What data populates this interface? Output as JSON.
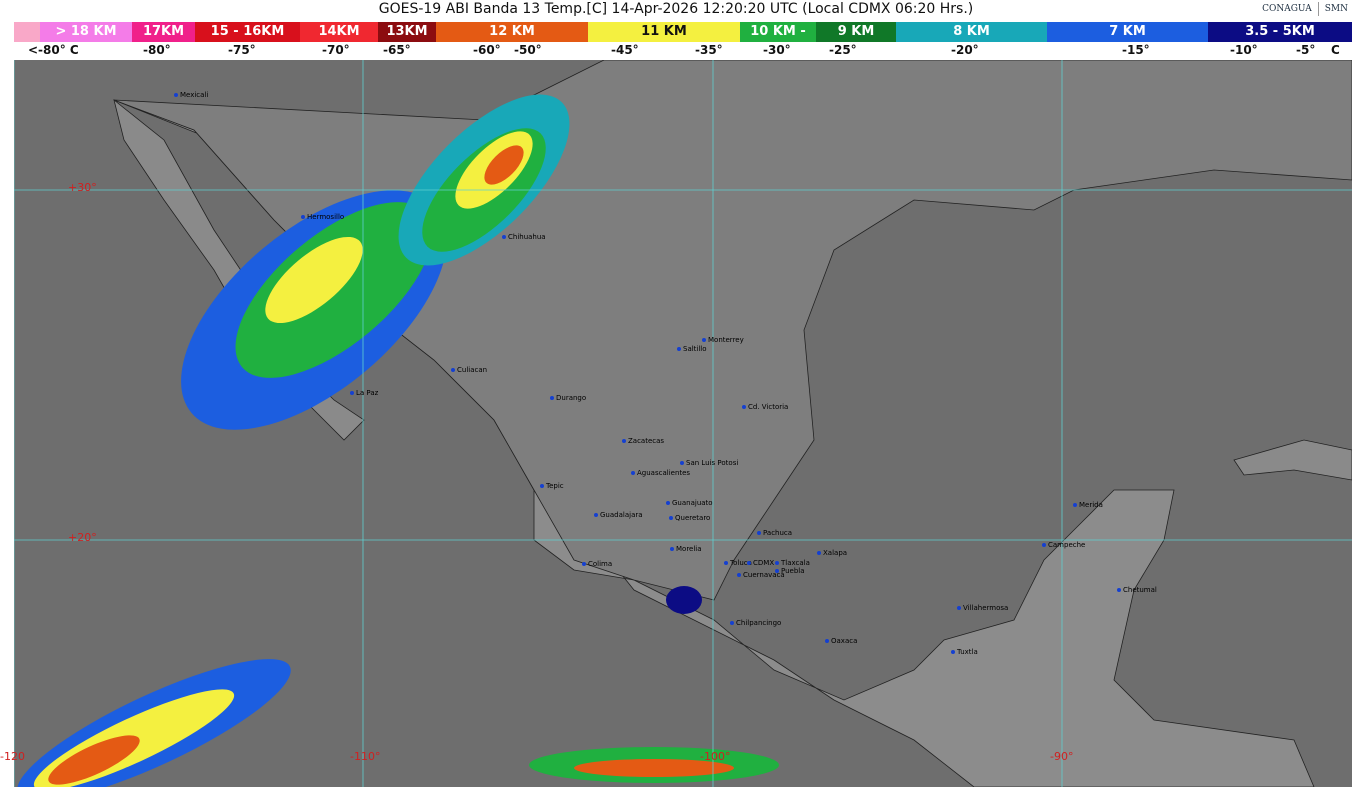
{
  "title": "GOES-19 ABI Banda 13 Temp.[C] 14-Apr-2026 12:20:20 UTC (Local CDMX  06:20 Hrs.)",
  "logos": {
    "conagua": "CONAGUA",
    "smn": "SMN"
  },
  "legend": {
    "segments": [
      {
        "label": "",
        "color": "#f9a8c8"
      },
      {
        "label": "> 18 KM",
        "color": "#f47ce8"
      },
      {
        "label": "17KM",
        "color": "#f0208a"
      },
      {
        "label": "15 - 16KM",
        "color": "#d8101c"
      },
      {
        "label": "14KM",
        "color": "#f02830"
      },
      {
        "label": "13KM",
        "color": "#8c0c10"
      },
      {
        "label": "12 KM",
        "color": "#e45a14"
      },
      {
        "label": "11 KM",
        "color": "#f4f040"
      },
      {
        "label": "10 KM -",
        "color": "#20b040"
      },
      {
        "label": "9 KM",
        "color": "#107828"
      },
      {
        "label": "8 KM",
        "color": "#18a8b8"
      },
      {
        "label": "7 KM",
        "color": "#1c5ee0"
      },
      {
        "label": "3.5 - 5KM",
        "color": "#0c0c84"
      }
    ],
    "ticks": [
      "<-80° C",
      "-80°",
      "-75°",
      "-70°",
      "-65°",
      "-60°",
      "-50°",
      "-45°",
      "-35°",
      "-30°",
      "-25°",
      "-20°",
      "-15°",
      "-10°",
      "-5°",
      "C"
    ]
  },
  "grid": {
    "lat": [
      "+30°",
      "+20°"
    ],
    "lon": [
      "-120",
      "-110°",
      "-100°",
      "-90°"
    ]
  },
  "cities": [
    "Mexicali",
    "Hermosillo",
    "Chihuahua",
    "Culiacan",
    "La Paz",
    "Durango",
    "Saltillo",
    "Monterrey",
    "Cd. Victoria",
    "Zacatecas",
    "San Luis Potosi",
    "Aguascalientes",
    "Tepic",
    "Guanajuato",
    "Guadalajara",
    "Queretaro",
    "Pachuca",
    "Morelia",
    "Xalapa",
    "Colima",
    "Toluca",
    "CDMX",
    "Tlaxcala",
    "Puebla",
    "Cuernavaca",
    "Chilpancingo",
    "Oaxaca",
    "Villahermosa",
    "Tuxtla",
    "Merida",
    "Campeche",
    "Chetumal"
  ]
}
